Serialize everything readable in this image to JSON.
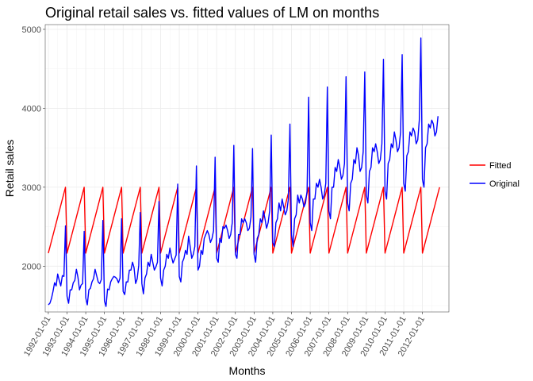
{
  "chart_data": {
    "type": "line",
    "title": "Original retail sales vs. fitted values of LM on months",
    "xlabel": "Months",
    "ylabel": "Retail sales",
    "xlim": [
      "1991-11-01",
      "2013-06-01"
    ],
    "ylim": [
      1420,
      5060
    ],
    "grid": true,
    "legend_position": "right",
    "x_tick_labels": [
      "1992-01-01",
      "1993-01-01",
      "1994-01-01",
      "1995-01-01",
      "1996-01-01",
      "1997-01-01",
      "1998-01-01",
      "1999-01-01",
      "2000-01-01",
      "2001-01-01",
      "2002-01-01",
      "2003-01-01",
      "2004-01-01",
      "2005-01-01",
      "2006-01-01",
      "2007-01-01",
      "2008-01-01",
      "2009-01-01",
      "2010-01-01",
      "2011-01-01",
      "2012-01-01"
    ],
    "y_ticks": [
      2000,
      3000,
      4000,
      5000
    ],
    "start_month": "1992-01",
    "series": [
      {
        "name": "Fitted",
        "color": "#ff0000",
        "period_months": 12,
        "january_value": 2165,
        "december_value": 3000,
        "last_month": "2012-12"
      },
      {
        "name": "Original",
        "color": "#0000ff",
        "values": [
          1510,
          1530,
          1590,
          1680,
          1790,
          1750,
          1900,
          1820,
          1750,
          1880,
          1870,
          2510,
          1620,
          1530,
          1700,
          1700,
          1790,
          1820,
          1960,
          1860,
          1700,
          1760,
          1780,
          2440,
          1600,
          1510,
          1700,
          1720,
          1800,
          1840,
          1960,
          1880,
          1800,
          1780,
          1830,
          2580,
          1560,
          1490,
          1710,
          1700,
          1800,
          1840,
          1870,
          1860,
          1840,
          1790,
          1850,
          2600,
          1680,
          1640,
          1800,
          1800,
          1950,
          1950,
          2050,
          1980,
          1780,
          1840,
          2010,
          2680,
          1780,
          1650,
          1850,
          1900,
          2050,
          2000,
          2150,
          2050,
          1950,
          1990,
          2050,
          2820,
          1850,
          1750,
          1950,
          2000,
          2150,
          2100,
          2230,
          2120,
          2040,
          2090,
          2140,
          3040,
          1870,
          1800,
          2050,
          2100,
          2200,
          2150,
          2380,
          2250,
          2100,
          2150,
          2250,
          3270,
          1950,
          2000,
          2200,
          2150,
          2350,
          2400,
          2450,
          2400,
          2300,
          2350,
          2450,
          3380,
          2100,
          2050,
          2350,
          2300,
          2500,
          2480,
          2520,
          2450,
          2350,
          2400,
          2550,
          3530,
          2150,
          2100,
          2400,
          2400,
          2600,
          2550,
          2600,
          2550,
          2450,
          2480,
          2620,
          3490,
          2150,
          2050,
          2350,
          2400,
          2600,
          2550,
          2700,
          2600,
          2480,
          2550,
          2700,
          3660,
          2300,
          2250,
          2550,
          2600,
          2800,
          2700,
          2850,
          2750,
          2650,
          2700,
          2850,
          3800,
          2400,
          2250,
          2600,
          2650,
          2900,
          2800,
          2900,
          2850,
          2750,
          2800,
          2950,
          4140,
          2550,
          2450,
          2850,
          2850,
          3050,
          3000,
          3100,
          3000,
          2850,
          2900,
          3050,
          4270,
          2700,
          2600,
          3000,
          3000,
          3250,
          3200,
          3350,
          3250,
          3100,
          3150,
          3300,
          4400,
          2800,
          2700,
          3050,
          3100,
          3350,
          3300,
          3500,
          3400,
          3200,
          3250,
          3450,
          4460,
          2900,
          2800,
          3200,
          3250,
          3500,
          3450,
          3550,
          3450,
          3300,
          3350,
          3550,
          4620,
          2950,
          2850,
          3300,
          3350,
          3550,
          3500,
          3700,
          3600,
          3450,
          3500,
          3700,
          4680,
          3050,
          2950,
          3400,
          3450,
          3700,
          3650,
          3750,
          3700,
          3550,
          3600,
          3850,
          4890,
          3100,
          3000,
          3500,
          3550,
          3800,
          3750,
          3850,
          3800,
          3650,
          3700,
          3900
        ]
      }
    ]
  }
}
